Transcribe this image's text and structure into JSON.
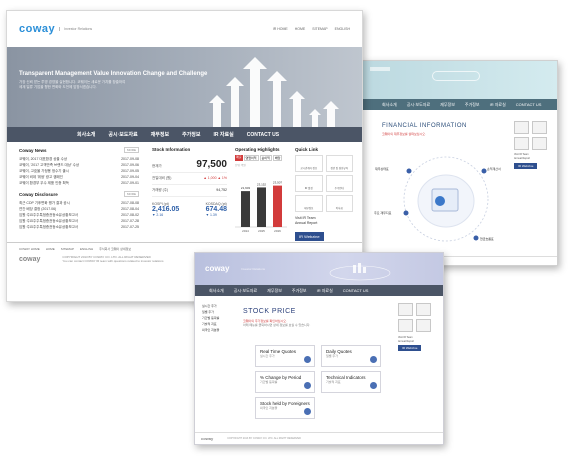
{
  "screen1": {
    "brand": "coway",
    "brand_sub": "Investor Relations",
    "top_links": [
      "IR HOME",
      "HOME",
      "SITEMAP",
      "ENGLISH"
    ],
    "hero_title": "Transparent Management Value Innovation Change and Challenge",
    "hero_text": [
      "가장 신뢰 받는 투명 경영을 실현합니다. 코웨이는 새로운 가치를 창출하여",
      "세계 일류 기업을 향한 변화와 도전에 앞장서겠습니다."
    ],
    "nav": [
      "회사소개",
      "공시·보도자료",
      "재무정보",
      "주가정보",
      "IR 자료실",
      "CONTACT US"
    ],
    "news_title": "Coway News",
    "news": [
      {
        "text": "코웨이, 2017 대표환경 상을 수상",
        "date": "2017-09-08"
      },
      {
        "text": "코웨이, '2017 고객만족 브랜드 대상' 수상",
        "date": "2017-09-06"
      },
      {
        "text": "코웨이, 고효율 가정용 정수기 출시",
        "date": "2017-09-05"
      },
      {
        "text": "코웨이 비데 '위생' 광고 캠페인",
        "date": "2017-09-04"
      },
      {
        "text": "코웨이 환경부 우수 제품 인증 획득",
        "date": "2017-09-01"
      }
    ],
    "disc_title": "Coway Disclosure",
    "disclosures": [
      {
        "text": "최근 CDP 기후변화 평가 결과 공시",
        "date": "2017-08-08"
      },
      {
        "text": "연간 배당 결정 (2017.06)",
        "date": "2017-08-04"
      },
      {
        "text": "임원·주요주주특정증권등소유상황보고서",
        "date": "2017-08-02"
      },
      {
        "text": "임원·주요주주특정증권등소유상황보고서",
        "date": "2017-07-28"
      },
      {
        "text": "임원·주요주주특정증권등소유상황보고서",
        "date": "2017-07-25"
      }
    ],
    "stock_title": "Stock Information",
    "stock_rows": [
      {
        "label": "현재가",
        "value": "97,500"
      },
      {
        "label": "전일대비 (원)",
        "value": "▲ 1,000 ▲ 1%"
      },
      {
        "label": "거래량 (주)",
        "value": "94,752"
      }
    ],
    "kospi_label": "KOSPI (pt)",
    "kospi_value": "2,416.05",
    "kospi_change": "▼ 2.16",
    "kosdaq_label": "KOSDAQ (pt)",
    "kosdaq_value": "674.48",
    "kosdaq_change": "▼ 1.39",
    "op_title": "Operating Highlights",
    "op_tabs": [
      "매출",
      "영업이익",
      "순이익",
      "배당"
    ],
    "op_unit": "단위: 억원",
    "op_values": [
      "21,603",
      "23,152",
      "23,507"
    ],
    "op_years": [
      "2014",
      "2015",
      "2016"
    ],
    "op_heights": [
      0.78,
      0.86,
      0.9
    ],
    "quick_title": "Quick Link",
    "quick_links": [
      "공시관계자 정보",
      "정관 및 경영규칙",
      "IR 일정",
      "주주안내",
      "재무정보",
      "이사회"
    ],
    "visit_label": "Visit IR Team",
    "annual_label": "Annual Report",
    "webzine_label": "IR Webzine",
    "footer_links": [
      "COWAY HOME",
      "HOME",
      "SITEMAP",
      "ENGLISH",
      "주식회사 코웨이 상세정보"
    ],
    "footer_copy": "COPYRIGHT 2013 BY COWAY CO. LTD. ALL RIGHT RESERVED",
    "footer_contact": "You can contact COWAY IR team with questions related to investor relations"
  },
  "screen2": {
    "nav": [
      "회사소개",
      "공시·보도자료",
      "재무정보",
      "주가정보",
      "IR 자료실",
      "CONTACT US"
    ],
    "page_title": "FINANCIAL INFORMATION",
    "page_desc": "코웨이의 재무정보를 살펴보십시오.",
    "hub": [
      "재무상태표",
      "손익계산서",
      "현금흐름표",
      "주요 재무지표"
    ],
    "sidebar": [
      "공시관계자",
      "정관/규칙",
      "IR 일정",
      "주주안내"
    ],
    "visit_label": "Visit IR Team",
    "annual_label": "Annual Report",
    "webzine_label": "IR Webzine"
  },
  "screen3": {
    "brand": "coway",
    "brand_sub": "Investor Relations",
    "nav": [
      "회사소개",
      "공시·보도자료",
      "재무정보",
      "주가정보",
      "IR 자료실",
      "CONTACT US"
    ],
    "side_menu": [
      "실시간 주가",
      "일별 주가",
      "기간별 등락률",
      "기술적 지표",
      "외국인 지분율"
    ],
    "page_title": "STOCK PRICE",
    "page_desc": [
      "코웨이의 주가정보를 확인하십시오.",
      "아래 메뉴를 클릭하시면 상세 정보를 보실 수 있습니다."
    ],
    "cards": [
      {
        "title": "Real Time Quotes",
        "sub": "실시간 주가"
      },
      {
        "title": "Daily Quotes",
        "sub": "일별 주가"
      },
      {
        "title": "% Change by Period",
        "sub": "기간별 등락률"
      },
      {
        "title": "Technical Indicators",
        "sub": "기술적 지표"
      },
      {
        "title": "Stock held by Foreigners",
        "sub": "외국인 지분율"
      }
    ],
    "sidebar": [
      "공시관계자",
      "정관/규칙",
      "IR 일정",
      "주주안내"
    ],
    "visit_label": "Visit IR Team",
    "annual_label": "Annual Report",
    "webzine_label": "IR Webzine",
    "footer_copy": "COPYRIGHT 2013 BY COWAY CO. LTD. ALL RIGHT RESERVED"
  }
}
